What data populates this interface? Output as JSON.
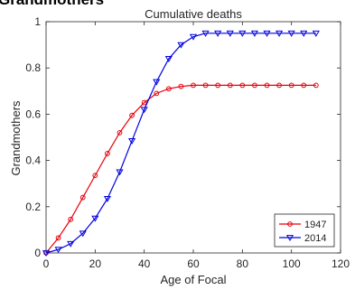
{
  "overlay_title": "Grandmothers",
  "chart_data": {
    "type": "line",
    "title": "Cumulative deaths",
    "xlabel": "Age of Focal",
    "ylabel": "Grandmothers",
    "xlim": [
      0,
      120
    ],
    "ylim": [
      0,
      1
    ],
    "xticks": [
      0,
      20,
      40,
      60,
      80,
      100,
      120
    ],
    "yticks": [
      0,
      0.2,
      0.4,
      0.6,
      0.8,
      1
    ],
    "xtick_labels": [
      "0",
      "20",
      "40",
      "60",
      "80",
      "100",
      "120"
    ],
    "ytick_labels": [
      "0",
      "0.2",
      "0.4",
      "0.6",
      "0.8",
      "1"
    ],
    "grid": false,
    "legend_position": "bottom-right",
    "x": [
      0,
      5,
      10,
      15,
      20,
      25,
      30,
      35,
      40,
      45,
      50,
      55,
      60,
      65,
      70,
      75,
      80,
      85,
      90,
      95,
      100,
      105,
      110
    ],
    "series": [
      {
        "name": "1947",
        "color": "#e8000b",
        "marker": "circle",
        "values": [
          0,
          0.065,
          0.145,
          0.24,
          0.335,
          0.43,
          0.52,
          0.595,
          0.65,
          0.69,
          0.71,
          0.72,
          0.725,
          0.725,
          0.725,
          0.725,
          0.725,
          0.725,
          0.725,
          0.725,
          0.725,
          0.725,
          0.725
        ]
      },
      {
        "name": "2014",
        "color": "#0000e0",
        "marker": "triangle-down",
        "values": [
          0,
          0.015,
          0.04,
          0.085,
          0.15,
          0.235,
          0.35,
          0.485,
          0.62,
          0.74,
          0.84,
          0.9,
          0.935,
          0.95,
          0.95,
          0.95,
          0.95,
          0.95,
          0.95,
          0.95,
          0.95,
          0.95,
          0.95
        ]
      }
    ]
  }
}
